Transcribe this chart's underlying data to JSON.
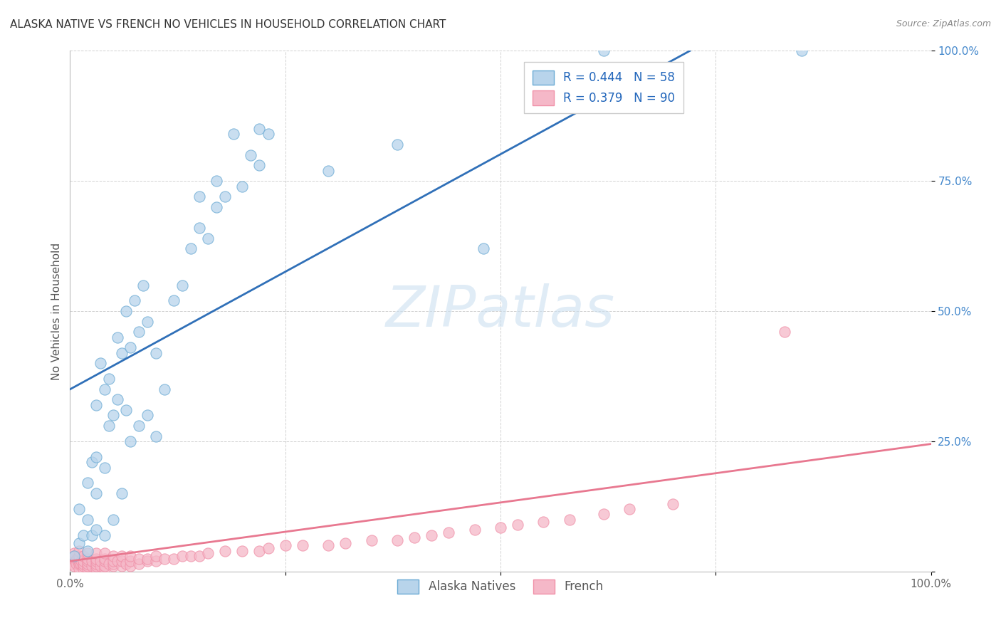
{
  "title": "ALASKA NATIVE VS FRENCH NO VEHICLES IN HOUSEHOLD CORRELATION CHART",
  "source": "Source: ZipAtlas.com",
  "ylabel": "No Vehicles in Household",
  "xlim": [
    0.0,
    1.0
  ],
  "ylim": [
    0.0,
    1.0
  ],
  "x_tick_vals": [
    0.0,
    0.25,
    0.5,
    0.75,
    1.0
  ],
  "x_tick_labels": [
    "0.0%",
    "",
    "",
    "",
    "100.0%"
  ],
  "y_tick_vals": [
    0.0,
    0.25,
    0.5,
    0.75,
    1.0
  ],
  "y_tick_labels": [
    "",
    "25.0%",
    "50.0%",
    "75.0%",
    "100.0%"
  ],
  "alaska_R": 0.444,
  "alaska_N": 58,
  "french_R": 0.379,
  "french_N": 90,
  "alaska_fill": "#b8d4eb",
  "alaska_edge": "#6aaad4",
  "french_fill": "#f5b8c8",
  "french_edge": "#f090a8",
  "alaska_line_color": "#3070b8",
  "french_line_color": "#e87890",
  "watermark_color": "#cce0f0",
  "watermark_text": "ZIPatlas",
  "alaska_x": [
    0.005,
    0.01,
    0.01,
    0.015,
    0.02,
    0.02,
    0.02,
    0.025,
    0.025,
    0.03,
    0.03,
    0.03,
    0.03,
    0.035,
    0.04,
    0.04,
    0.04,
    0.045,
    0.045,
    0.05,
    0.05,
    0.055,
    0.055,
    0.06,
    0.06,
    0.065,
    0.065,
    0.07,
    0.07,
    0.075,
    0.08,
    0.08,
    0.085,
    0.09,
    0.09,
    0.1,
    0.1,
    0.11,
    0.12,
    0.13,
    0.14,
    0.15,
    0.15,
    0.16,
    0.17,
    0.17,
    0.18,
    0.19,
    0.2,
    0.21,
    0.22,
    0.22,
    0.23,
    0.3,
    0.38,
    0.48,
    0.62,
    0.85
  ],
  "alaska_y": [
    0.03,
    0.055,
    0.12,
    0.07,
    0.04,
    0.1,
    0.17,
    0.07,
    0.21,
    0.08,
    0.15,
    0.22,
    0.32,
    0.4,
    0.07,
    0.2,
    0.35,
    0.28,
    0.37,
    0.1,
    0.3,
    0.33,
    0.45,
    0.15,
    0.42,
    0.31,
    0.5,
    0.25,
    0.43,
    0.52,
    0.28,
    0.46,
    0.55,
    0.3,
    0.48,
    0.26,
    0.42,
    0.35,
    0.52,
    0.55,
    0.62,
    0.66,
    0.72,
    0.64,
    0.7,
    0.75,
    0.72,
    0.84,
    0.74,
    0.8,
    0.78,
    0.85,
    0.84,
    0.77,
    0.82,
    0.62,
    1.0,
    1.0
  ],
  "french_x": [
    0.001,
    0.002,
    0.003,
    0.004,
    0.005,
    0.005,
    0.006,
    0.007,
    0.008,
    0.009,
    0.01,
    0.01,
    0.01,
    0.01,
    0.01,
    0.012,
    0.013,
    0.015,
    0.015,
    0.015,
    0.015,
    0.015,
    0.02,
    0.02,
    0.02,
    0.02,
    0.02,
    0.02,
    0.025,
    0.025,
    0.03,
    0.03,
    0.03,
    0.03,
    0.03,
    0.03,
    0.035,
    0.035,
    0.04,
    0.04,
    0.04,
    0.04,
    0.04,
    0.045,
    0.05,
    0.05,
    0.05,
    0.05,
    0.055,
    0.06,
    0.06,
    0.06,
    0.065,
    0.07,
    0.07,
    0.07,
    0.08,
    0.08,
    0.09,
    0.09,
    0.1,
    0.1,
    0.11,
    0.12,
    0.13,
    0.14,
    0.15,
    0.16,
    0.18,
    0.2,
    0.22,
    0.23,
    0.25,
    0.27,
    0.3,
    0.32,
    0.35,
    0.38,
    0.4,
    0.42,
    0.44,
    0.47,
    0.5,
    0.52,
    0.55,
    0.58,
    0.62,
    0.65,
    0.7,
    0.83
  ],
  "french_y": [
    0.02,
    0.015,
    0.025,
    0.03,
    0.01,
    0.035,
    0.02,
    0.015,
    0.025,
    0.02,
    0.005,
    0.015,
    0.02,
    0.03,
    0.04,
    0.015,
    0.02,
    0.005,
    0.01,
    0.015,
    0.02,
    0.03,
    0.005,
    0.01,
    0.015,
    0.02,
    0.025,
    0.035,
    0.01,
    0.02,
    0.005,
    0.01,
    0.015,
    0.02,
    0.025,
    0.035,
    0.01,
    0.02,
    0.005,
    0.01,
    0.02,
    0.025,
    0.035,
    0.015,
    0.01,
    0.015,
    0.02,
    0.03,
    0.02,
    0.01,
    0.02,
    0.03,
    0.015,
    0.01,
    0.02,
    0.03,
    0.015,
    0.025,
    0.02,
    0.025,
    0.02,
    0.03,
    0.025,
    0.025,
    0.03,
    0.03,
    0.03,
    0.035,
    0.04,
    0.04,
    0.04,
    0.045,
    0.05,
    0.05,
    0.05,
    0.055,
    0.06,
    0.06,
    0.065,
    0.07,
    0.075,
    0.08,
    0.085,
    0.09,
    0.095,
    0.1,
    0.11,
    0.12,
    0.13,
    0.46
  ],
  "alaska_line_x0": 0.0,
  "alaska_line_y0": 0.35,
  "alaska_line_x1": 0.72,
  "alaska_line_y1": 1.0,
  "french_line_x0": 0.0,
  "french_line_y0": 0.02,
  "french_line_x1": 1.0,
  "french_line_y1": 0.245
}
